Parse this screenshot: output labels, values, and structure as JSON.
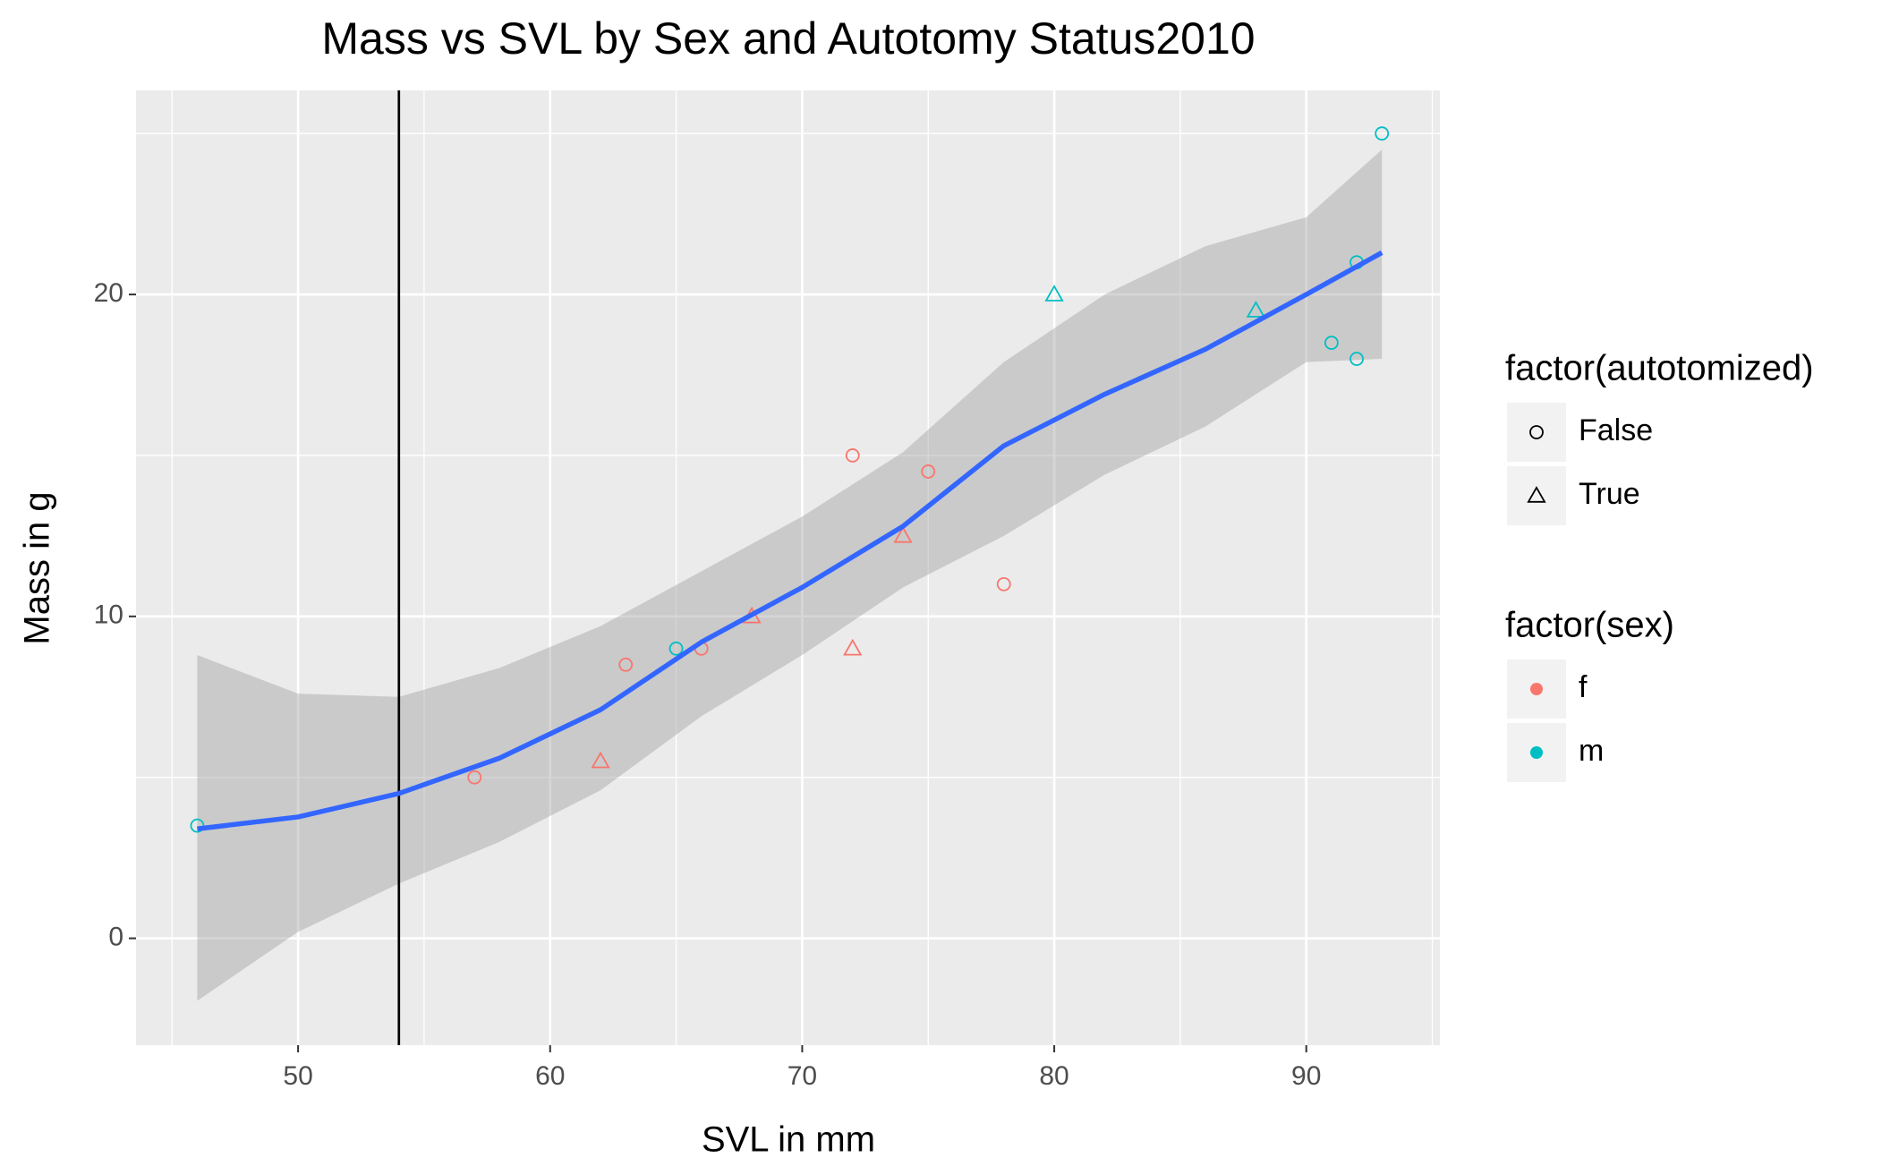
{
  "chart_data": {
    "type": "scatter",
    "title": "Mass vs SVL by Sex and Autotomy Status2010",
    "x_label": "SVL in mm",
    "y_label": "Mass in g",
    "xlim": [
      43.57,
      95.3
    ],
    "ylim": [
      -3.32,
      26.34
    ],
    "xticks": [
      50,
      60,
      70,
      80,
      90
    ],
    "yticks": [
      0,
      10,
      20
    ],
    "xminor": [
      45,
      55,
      65,
      75,
      85,
      95
    ],
    "yminor": [
      5,
      15,
      25
    ],
    "grid": true,
    "points": {
      "x": [
        46,
        57,
        62,
        63,
        65,
        66,
        68,
        72,
        72,
        74,
        75,
        78,
        80,
        88,
        91,
        92,
        92,
        93
      ],
      "y": [
        3.5,
        5,
        5.5,
        8.5,
        9,
        9,
        10,
        15,
        9,
        12.5,
        14.5,
        11,
        20,
        19.5,
        18.5,
        21,
        18,
        25
      ],
      "sex": [
        "m",
        "f",
        "f",
        "f",
        "m",
        "f",
        "f",
        "f",
        "f",
        "f",
        "f",
        "f",
        "m",
        "m",
        "m",
        "m",
        "m",
        "m"
      ],
      "autotomized": [
        "False",
        "False",
        "True",
        "False",
        "False",
        "False",
        "True",
        "False",
        "True",
        "True",
        "False",
        "False",
        "True",
        "True",
        "False",
        "False",
        "False",
        "False"
      ]
    },
    "smooth": {
      "color": "#3366FF",
      "band_color": "#999999",
      "x": [
        46,
        50,
        54,
        58,
        62,
        66,
        70,
        74,
        78,
        82,
        86,
        90,
        93
      ],
      "y": [
        3.4,
        3.77,
        4.5,
        5.6,
        7.1,
        9.2,
        10.9,
        12.8,
        15.3,
        16.9,
        18.3,
        20.0,
        21.3
      ],
      "lower": [
        -1.94,
        0.2,
        1.7,
        3.0,
        4.6,
        6.9,
        8.8,
        10.9,
        12.5,
        14.4,
        15.9,
        17.9,
        18.0
      ],
      "upper": [
        8.8,
        7.6,
        7.5,
        8.4,
        9.7,
        11.4,
        13.1,
        15.1,
        17.9,
        20.0,
        21.5,
        22.4,
        24.5
      ]
    },
    "vline": 54,
    "legends": [
      {
        "title": "factor(autotomized)",
        "labels": [
          "False",
          "True"
        ],
        "shapes": [
          "circle",
          "triangle"
        ]
      },
      {
        "title": "factor(sex)",
        "labels": [
          "f",
          "m"
        ],
        "colors": [
          "#F8766D",
          "#00BFC4"
        ]
      }
    ]
  }
}
